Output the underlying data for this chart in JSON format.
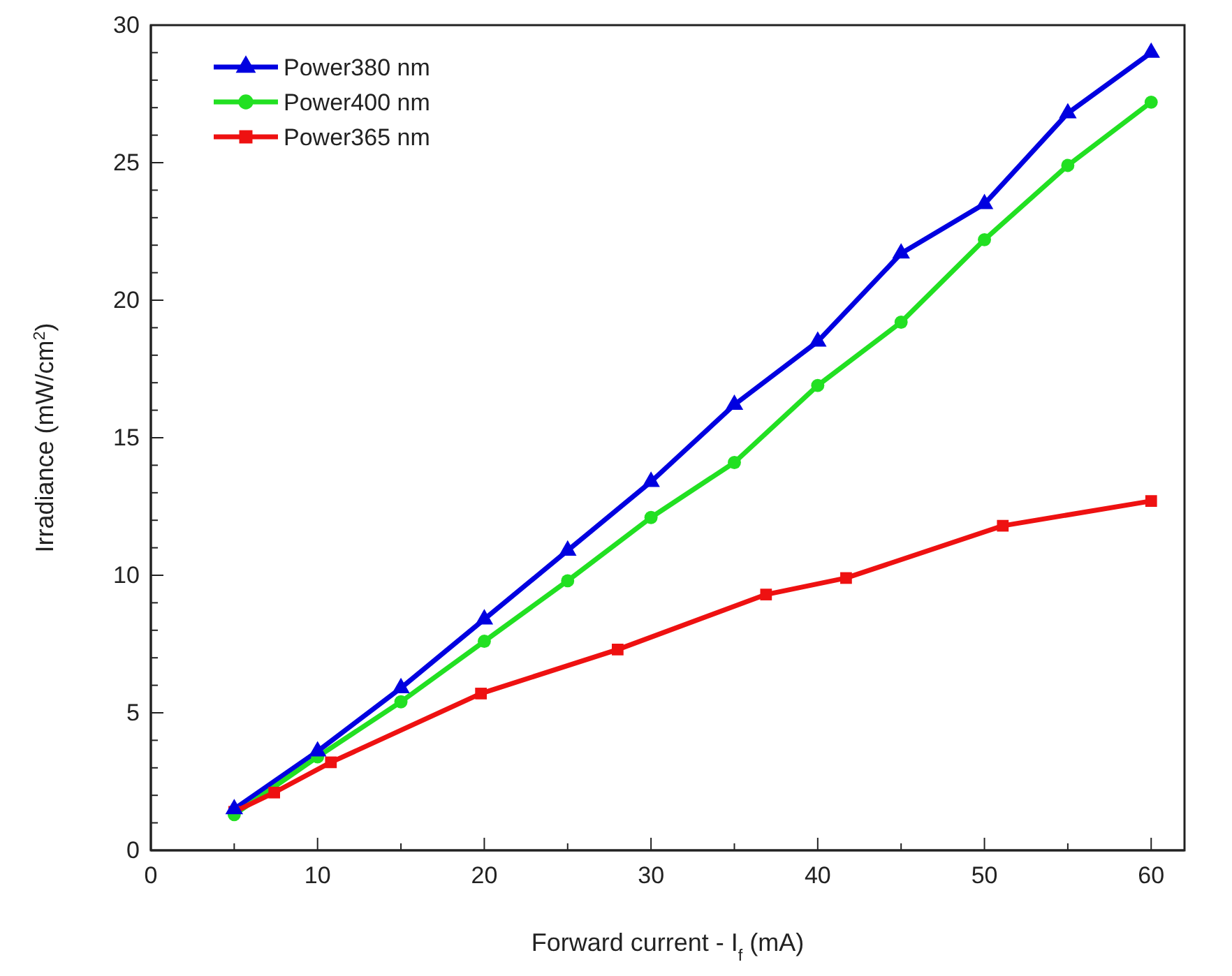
{
  "chart_data": {
    "type": "line",
    "xlabel": "Forward current - I$_{f}$ (mA)",
    "ylabel": "Irradiance  (mW/cm$^{2}$)",
    "xlim": [
      0,
      62
    ],
    "ylim": [
      0,
      30
    ],
    "xticks": [
      0,
      {
        "value": 5,
        "label": null
      },
      10,
      {
        "value": 15,
        "label": null
      },
      20,
      {
        "value": 25,
        "label": null
      },
      30,
      {
        "value": 35,
        "label": null
      },
      40,
      {
        "value": 45,
        "label": null
      },
      50,
      {
        "value": 55,
        "label": null
      },
      60
    ],
    "yticks": [
      0,
      {
        "value": 1,
        "label": null
      },
      {
        "value": 2,
        "label": null
      },
      {
        "value": 3,
        "label": null
      },
      {
        "value": 4,
        "label": null
      },
      5,
      {
        "value": 6,
        "label": null
      },
      {
        "value": 7,
        "label": null
      },
      {
        "value": 8,
        "label": null
      },
      {
        "value": 9,
        "label": null
      },
      10,
      {
        "value": 11,
        "label": null
      },
      {
        "value": 12,
        "label": null
      },
      {
        "value": 13,
        "label": null
      },
      {
        "value": 14,
        "label": null
      },
      15,
      {
        "value": 16,
        "label": null
      },
      {
        "value": 17,
        "label": null
      },
      {
        "value": 18,
        "label": null
      },
      {
        "value": 19,
        "label": null
      },
      20,
      {
        "value": 21,
        "label": null
      },
      {
        "value": 22,
        "label": null
      },
      {
        "value": 23,
        "label": null
      },
      {
        "value": 24,
        "label": null
      },
      25,
      {
        "value": 26,
        "label": null
      },
      {
        "value": 27,
        "label": null
      },
      {
        "value": 28,
        "label": null
      },
      {
        "value": 29,
        "label": null
      },
      30
    ],
    "legend": "top left",
    "grid": false,
    "line_style": "solid",
    "series": [
      {
        "name": "Power380 nm",
        "color": "#0000e0",
        "marker": "triangle",
        "x": [
          5,
          10,
          15,
          20,
          25,
          30,
          35,
          40,
          45,
          50,
          55,
          60
        ],
        "values": [
          1.5,
          3.6,
          5.9,
          8.4,
          10.9,
          13.4,
          16.2,
          18.5,
          21.7,
          23.5,
          26.8,
          29.0
        ]
      },
      {
        "name": "Power400 nm",
        "color": "#22e022",
        "marker": "circle",
        "x": [
          5,
          10,
          15,
          20,
          25,
          30,
          35,
          40,
          45,
          50,
          55,
          60
        ],
        "values": [
          1.3,
          3.4,
          5.4,
          7.6,
          9.8,
          12.1,
          14.1,
          16.9,
          19.2,
          22.2,
          24.9,
          27.2
        ]
      },
      {
        "name": "Power365 nm",
        "color": "#ee1111",
        "marker": "square",
        "x": [
          5,
          7.4,
          10.8,
          19.8,
          28,
          36.9,
          41.7,
          51.1,
          60
        ],
        "values": [
          1.4,
          2.1,
          3.2,
          5.7,
          7.3,
          9.3,
          9.9,
          11.8,
          12.7
        ]
      }
    ]
  }
}
